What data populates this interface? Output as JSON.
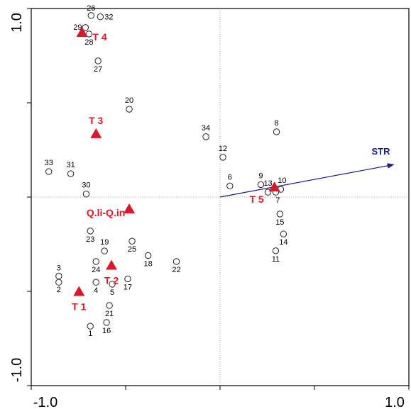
{
  "chart_data": {
    "type": "scatter",
    "title": "",
    "xlabel": "",
    "ylabel": "",
    "xlim": [
      -1.0,
      1.0
    ],
    "ylim": [
      -1.0,
      1.0
    ],
    "x_tick_labels": [
      "-1.0",
      "1.0"
    ],
    "y_tick_labels": [
      "1.0",
      "-1.0"
    ],
    "grid": false,
    "colors": {
      "groups": "#d9182a",
      "arrow": "#1b1d86",
      "points": "#222222",
      "axes": "#000000"
    },
    "sites": [
      {
        "label": "1",
        "x": -0.687,
        "y": -0.685
      },
      {
        "label": "2",
        "x": -0.854,
        "y": -0.452
      },
      {
        "label": "3",
        "x": -0.854,
        "y": -0.419
      },
      {
        "label": "4",
        "x": -0.657,
        "y": -0.452
      },
      {
        "label": "5",
        "x": -0.571,
        "y": -0.462
      },
      {
        "label": "6",
        "x": 0.052,
        "y": 0.059
      },
      {
        "label": "7",
        "x": 0.295,
        "y": 0.026
      },
      {
        "label": "8",
        "x": 0.299,
        "y": 0.346
      },
      {
        "label": "9",
        "x": 0.216,
        "y": 0.066
      },
      {
        "label": "10",
        "x": 0.321,
        "y": 0.041
      },
      {
        "label": "11",
        "x": 0.295,
        "y": -0.285
      },
      {
        "label": "12",
        "x": 0.015,
        "y": 0.211
      },
      {
        "label": "13",
        "x": 0.254,
        "y": 0.026
      },
      {
        "label": "14",
        "x": 0.336,
        "y": -0.196
      },
      {
        "label": "15",
        "x": 0.317,
        "y": -0.09
      },
      {
        "label": "16",
        "x": -0.601,
        "y": -0.665
      },
      {
        "label": "17",
        "x": -0.489,
        "y": -0.434
      },
      {
        "label": "18",
        "x": -0.381,
        "y": -0.31
      },
      {
        "label": "19",
        "x": -0.612,
        "y": -0.286
      },
      {
        "label": "20",
        "x": -0.481,
        "y": 0.466
      },
      {
        "label": "21",
        "x": -0.586,
        "y": -0.575
      },
      {
        "label": "22",
        "x": -0.231,
        "y": -0.342
      },
      {
        "label": "23",
        "x": -0.687,
        "y": -0.18
      },
      {
        "label": "24",
        "x": -0.657,
        "y": -0.342
      },
      {
        "label": "25",
        "x": -0.466,
        "y": -0.234
      },
      {
        "label": "26",
        "x": -0.683,
        "y": 0.963
      },
      {
        "label": "27",
        "x": -0.646,
        "y": 0.722
      },
      {
        "label": "28",
        "x": -0.694,
        "y": 0.865
      },
      {
        "label": "29",
        "x": -0.713,
        "y": 0.899
      },
      {
        "label": "30",
        "x": -0.709,
        "y": 0.016
      },
      {
        "label": "31",
        "x": -0.791,
        "y": 0.124
      },
      {
        "label": "32",
        "x": -0.634,
        "y": 0.956
      },
      {
        "label": "33",
        "x": -0.907,
        "y": 0.135
      },
      {
        "label": "34",
        "x": -0.075,
        "y": 0.32
      }
    ],
    "groups": [
      {
        "label": "T 1",
        "x": -0.747,
        "y": -0.502
      },
      {
        "label": "T 2",
        "x": -0.575,
        "y": -0.363
      },
      {
        "label": "T 3",
        "x": -0.657,
        "y": 0.335
      },
      {
        "label": "T 4",
        "x": -0.731,
        "y": 0.872
      },
      {
        "label": "T 5",
        "x": 0.288,
        "y": 0.052
      },
      {
        "label": "Q.li-Q.in",
        "x": -0.481,
        "y": -0.064
      }
    ],
    "environmental_variables": [
      {
        "label": "STR",
        "x": 0.919,
        "y": 0.172
      }
    ]
  }
}
